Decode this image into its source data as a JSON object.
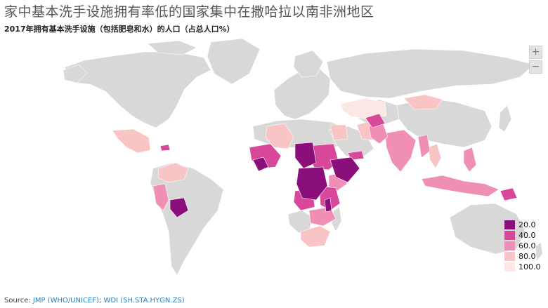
{
  "title": "家中基本洗手设施拥有率低的国家集中在撒哈拉以南非洲地区",
  "subtitle": "2017年拥有基本洗手设施（包括肥皂和水）的人口（占总人口%）",
  "zoom": {
    "in_label": "+",
    "out_label": "−"
  },
  "legend": {
    "items": [
      {
        "label": "20.0",
        "color": "#8b0f7a"
      },
      {
        "label": "40.0",
        "color": "#d9479a"
      },
      {
        "label": "60.0",
        "color": "#f08fb5"
      },
      {
        "label": "80.0",
        "color": "#f8c4c4"
      },
      {
        "label": "100.0",
        "color": "#fbe7e5"
      }
    ]
  },
  "colors": {
    "no_data": "#d8d8d8",
    "ocean": "#ffffff",
    "band_20": "#8b0f7a",
    "band_40": "#d9479a",
    "band_60": "#f08fb5",
    "band_80": "#f8c4c4",
    "band_100": "#fbe7e5"
  },
  "source": {
    "prefix": "Source:",
    "link1": "JMP (WHO/UNICEF)",
    "separator": ";",
    "link2": "WDI (SH.STA.HYGN.ZS)"
  }
}
